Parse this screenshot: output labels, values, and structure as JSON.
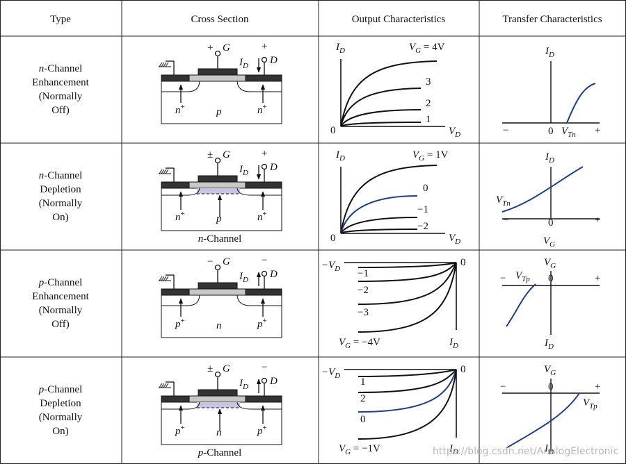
{
  "header": [
    "Type",
    "Cross Section",
    "Output Characteristics",
    "Transfer Characteristics"
  ],
  "rows": [
    {
      "type": {
        "prefix": "n",
        "lines": [
          "-Channel",
          "Enhancement",
          "(Normally",
          "Off)"
        ]
      },
      "cross": {
        "labels": [
          "+",
          {
            "t": "G"
          },
          "+",
          {
            "t": "I",
            "s": "D"
          },
          {
            "t": "D"
          },
          {
            "t": "n",
            "u": "+"
          },
          {
            "t": "p"
          },
          {
            "t": "n",
            "u": "+"
          }
        ]
      },
      "output": {
        "labels": [
          {
            "t": "I",
            "s": "D"
          },
          {
            "t": "V",
            "s": "G",
            "a": " = 4V"
          },
          "3",
          "2",
          "1",
          "0",
          {
            "t": "V",
            "s": "D"
          }
        ]
      },
      "transfer": {
        "labels": [
          {
            "t": "I",
            "s": "D"
          },
          "−",
          "0",
          {
            "t": "V",
            "s": "Tn"
          },
          "+"
        ]
      }
    },
    {
      "type": {
        "prefix": "n",
        "lines": [
          "-Channel",
          "Depletion",
          "(Normally",
          "On)"
        ]
      },
      "cross": {
        "labels": [
          "±",
          {
            "t": "G"
          },
          "+",
          {
            "t": "I",
            "s": "D"
          },
          {
            "t": "D"
          },
          {
            "t": "n",
            "u": "+"
          },
          {
            "t": "p"
          },
          {
            "t": "n",
            "u": "+"
          }
        ],
        "caption": {
          "t": "n",
          "a": "-Channel"
        }
      },
      "output": {
        "labels": [
          {
            "t": "I",
            "s": "D"
          },
          {
            "t": "V",
            "s": "G",
            "a": " = 1V"
          },
          "0",
          "−1",
          "−2",
          "0",
          {
            "t": "V",
            "s": "D"
          }
        ]
      },
      "transfer": {
        "labels": [
          {
            "t": "I",
            "s": "D"
          },
          {
            "t": "V",
            "s": "Tn"
          },
          "−",
          "0",
          "+",
          {
            "t": "V",
            "s": "G"
          }
        ]
      }
    },
    {
      "type": {
        "prefix": "p",
        "lines": [
          "-Channel",
          "Enhancement",
          "(Normally",
          "Off)"
        ]
      },
      "cross": {
        "labels": [
          "−",
          {
            "t": "G"
          },
          "−",
          {
            "t": "I",
            "s": "D"
          },
          {
            "t": "D"
          },
          {
            "t": "p",
            "u": "+"
          },
          {
            "t": "n"
          },
          {
            "t": "p",
            "u": "+"
          }
        ]
      },
      "output": {
        "labels": [
          {
            "t": "−V",
            "s": "D"
          },
          "−1",
          "−2",
          "−3",
          {
            "t": "V",
            "s": "G",
            "a": " = −4V"
          },
          "0",
          {
            "t": "I",
            "s": "D"
          }
        ]
      },
      "transfer": {
        "labels": [
          {
            "t": "V",
            "s": "G"
          },
          "−",
          {
            "t": "V",
            "s": "Tp"
          },
          "0",
          "+",
          {
            "t": "I",
            "s": "D"
          }
        ]
      }
    },
    {
      "type": {
        "prefix": "p",
        "lines": [
          "-Channel",
          "Depletion",
          "(Normally",
          "On)"
        ]
      },
      "cross": {
        "labels": [
          "±",
          {
            "t": "G"
          },
          "−",
          {
            "t": "I",
            "s": "D"
          },
          {
            "t": "D"
          },
          {
            "t": "p",
            "u": "+"
          },
          {
            "t": "n"
          },
          {
            "t": "p",
            "u": "+"
          }
        ],
        "caption": {
          "t": "p",
          "a": "-Channel"
        }
      },
      "output": {
        "labels": [
          {
            "t": "−V",
            "s": "D"
          },
          "1",
          "2",
          "0",
          {
            "t": "V",
            "s": "G",
            "a": " = −1V"
          },
          "0",
          {
            "t": "I",
            "s": "D"
          }
        ]
      },
      "transfer": {
        "labels": [
          {
            "t": "V",
            "s": "G"
          },
          "−",
          "0",
          "+",
          {
            "t": "V",
            "s": "Tp"
          },
          {
            "t": "I",
            "s": "D"
          }
        ]
      }
    }
  ],
  "watermark": "https://blog.csdn.net/AnalogElectronic"
}
